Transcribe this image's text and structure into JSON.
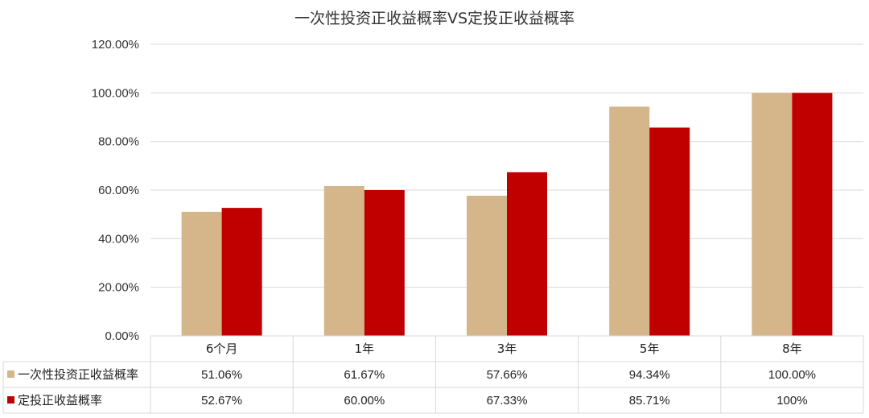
{
  "chart_data": {
    "type": "bar",
    "title": "一次性投资正收益概率VS定投正收益概率",
    "categories": [
      "6个月",
      "1年",
      "3年",
      "5年",
      "8年"
    ],
    "yticks": [
      "0.00%",
      "20.00%",
      "40.00%",
      "60.00%",
      "80.00%",
      "100.00%",
      "120.00%"
    ],
    "ylim": [
      0,
      120
    ],
    "grid": true,
    "legend_position": "data-table",
    "series": [
      {
        "name": "一次性投资正收益概率",
        "color": "#d4b68a",
        "values": [
          51.06,
          61.67,
          57.66,
          94.34,
          100
        ],
        "labels": [
          "51.06%",
          "61.67%",
          "57.66%",
          "94.34%",
          "100.00%"
        ]
      },
      {
        "name": "定投正收益概率",
        "color": "#c00000",
        "values": [
          52.67,
          60.0,
          67.33,
          85.71,
          100
        ],
        "labels": [
          "52.67%",
          "60.00%",
          "67.33%",
          "85.71%",
          "100%"
        ]
      }
    ]
  }
}
